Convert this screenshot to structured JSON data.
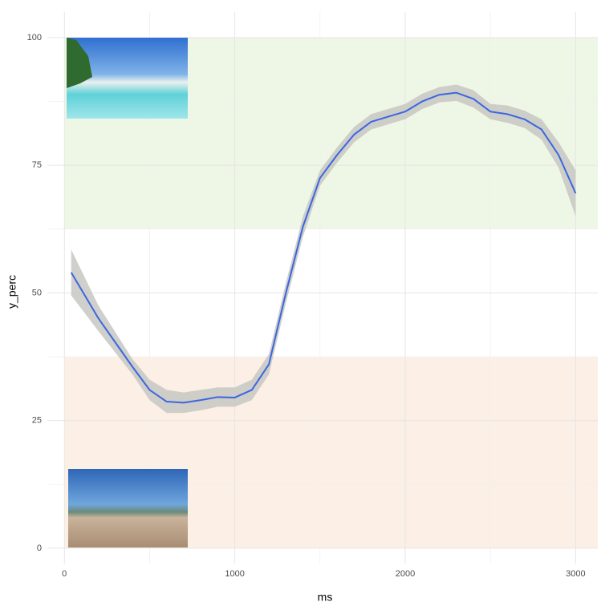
{
  "chart_data": {
    "type": "line",
    "x_label": "ms",
    "y_label": "y_perc",
    "xlim": [
      -100,
      3130
    ],
    "ylim": [
      -3,
      105
    ],
    "xticks": [
      0,
      1000,
      2000,
      3000
    ],
    "yticks": [
      0,
      25,
      50,
      75,
      100
    ],
    "x_minor_ticks": [
      500,
      1500,
      2500
    ],
    "y_minor_ticks": [
      12.5,
      37.5,
      62.5,
      87.5
    ],
    "grid": true,
    "regions": [
      {
        "ymin": 62.5,
        "ymax": 100,
        "xmin": 0,
        "xmax": 3130,
        "color": "#eef6e6"
      },
      {
        "ymin": 0,
        "ymax": 37.5,
        "xmin": 0,
        "xmax": 3130,
        "color": "#fbefe6"
      }
    ],
    "x": [
      40,
      200,
      400,
      500,
      600,
      700,
      800,
      900,
      1000,
      1100,
      1200,
      1300,
      1400,
      1500,
      1600,
      1700,
      1800,
      1900,
      2000,
      2100,
      2200,
      2300,
      2400,
      2500,
      2600,
      2700,
      2800,
      2900,
      3000
    ],
    "series": [
      {
        "color": "#3b66e0",
        "band_color": "#c7c7c2",
        "values": [
          54,
          45,
          35.5,
          31,
          28.7,
          28.5,
          29,
          29.6,
          29.5,
          31,
          36,
          50,
          63,
          72.5,
          77,
          81,
          83.5,
          84.5,
          85.5,
          87.5,
          88.8,
          89.2,
          88,
          85.5,
          85,
          84,
          82,
          77,
          69.5
        ],
        "lower": [
          49.5,
          42.5,
          34,
          29,
          26.5,
          26.5,
          27,
          27.7,
          27.7,
          29,
          34,
          48,
          61,
          71,
          75.5,
          79.5,
          82,
          83,
          84,
          86,
          87.3,
          87.6,
          86.3,
          84,
          83.3,
          82.3,
          80,
          74.5,
          65
        ],
        "upper": [
          58.5,
          47.5,
          37,
          33,
          31,
          30.5,
          31,
          31.5,
          31.5,
          33,
          38,
          52,
          65,
          74,
          78.5,
          82.5,
          85,
          86,
          87,
          89,
          90.3,
          90.8,
          89.7,
          87,
          86.7,
          85.7,
          84,
          79.5,
          74
        ]
      }
    ]
  }
}
